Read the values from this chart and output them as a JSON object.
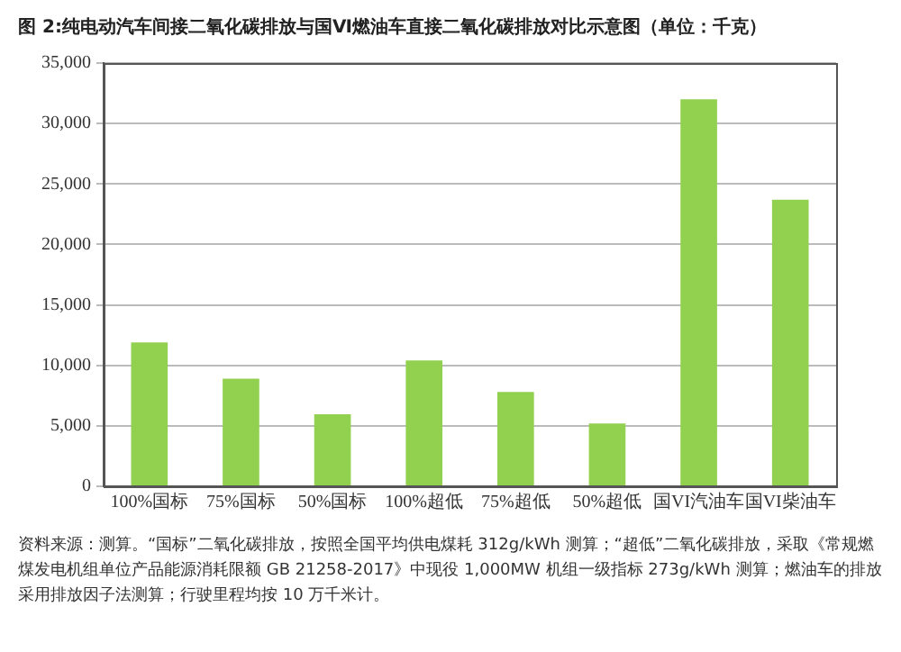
{
  "chart_data": {
    "type": "bar",
    "title": "图 2:纯电动汽车间接二氧化碳排放与国Ⅵ燃油车直接二氧化碳排放对比示意图（单位：千克）",
    "categories": [
      "100%国标",
      "75%国标",
      "50%国标",
      "100%超低",
      "75%超低",
      "50%超低",
      "国VI汽油车",
      "国VI柴油车"
    ],
    "values": [
      11900,
      8900,
      5950,
      10400,
      7800,
      5200,
      32000,
      23700
    ],
    "color": "#92d050",
    "ylim": [
      0,
      35000
    ],
    "yticks": [
      {
        "value": 0,
        "label": "0"
      },
      {
        "value": 5000,
        "label": "5,000"
      },
      {
        "value": 10000,
        "label": "10,000"
      },
      {
        "value": 15000,
        "label": "15,000"
      },
      {
        "value": 20000,
        "label": "20,000"
      },
      {
        "value": 25000,
        "label": "25,000"
      },
      {
        "value": 30000,
        "label": "30,000"
      },
      {
        "value": 35000,
        "label": "35,000"
      }
    ],
    "grid": "y",
    "legend": false,
    "annotations": [
      "资料来源：测算。“国标”二氧化碳排放，按照全国平均供电煤耗 312g/kWh 测算；“超低”二氧化碳排放，采取《常规燃煤发电机组单位产品能源消耗限额 GB 21258-2017》中现役 1,000MW 机组一级指标 273g/kWh 测算；燃油车的排放采用排放因子法测算；行驶里程均按 10 万千米计。"
    ]
  }
}
